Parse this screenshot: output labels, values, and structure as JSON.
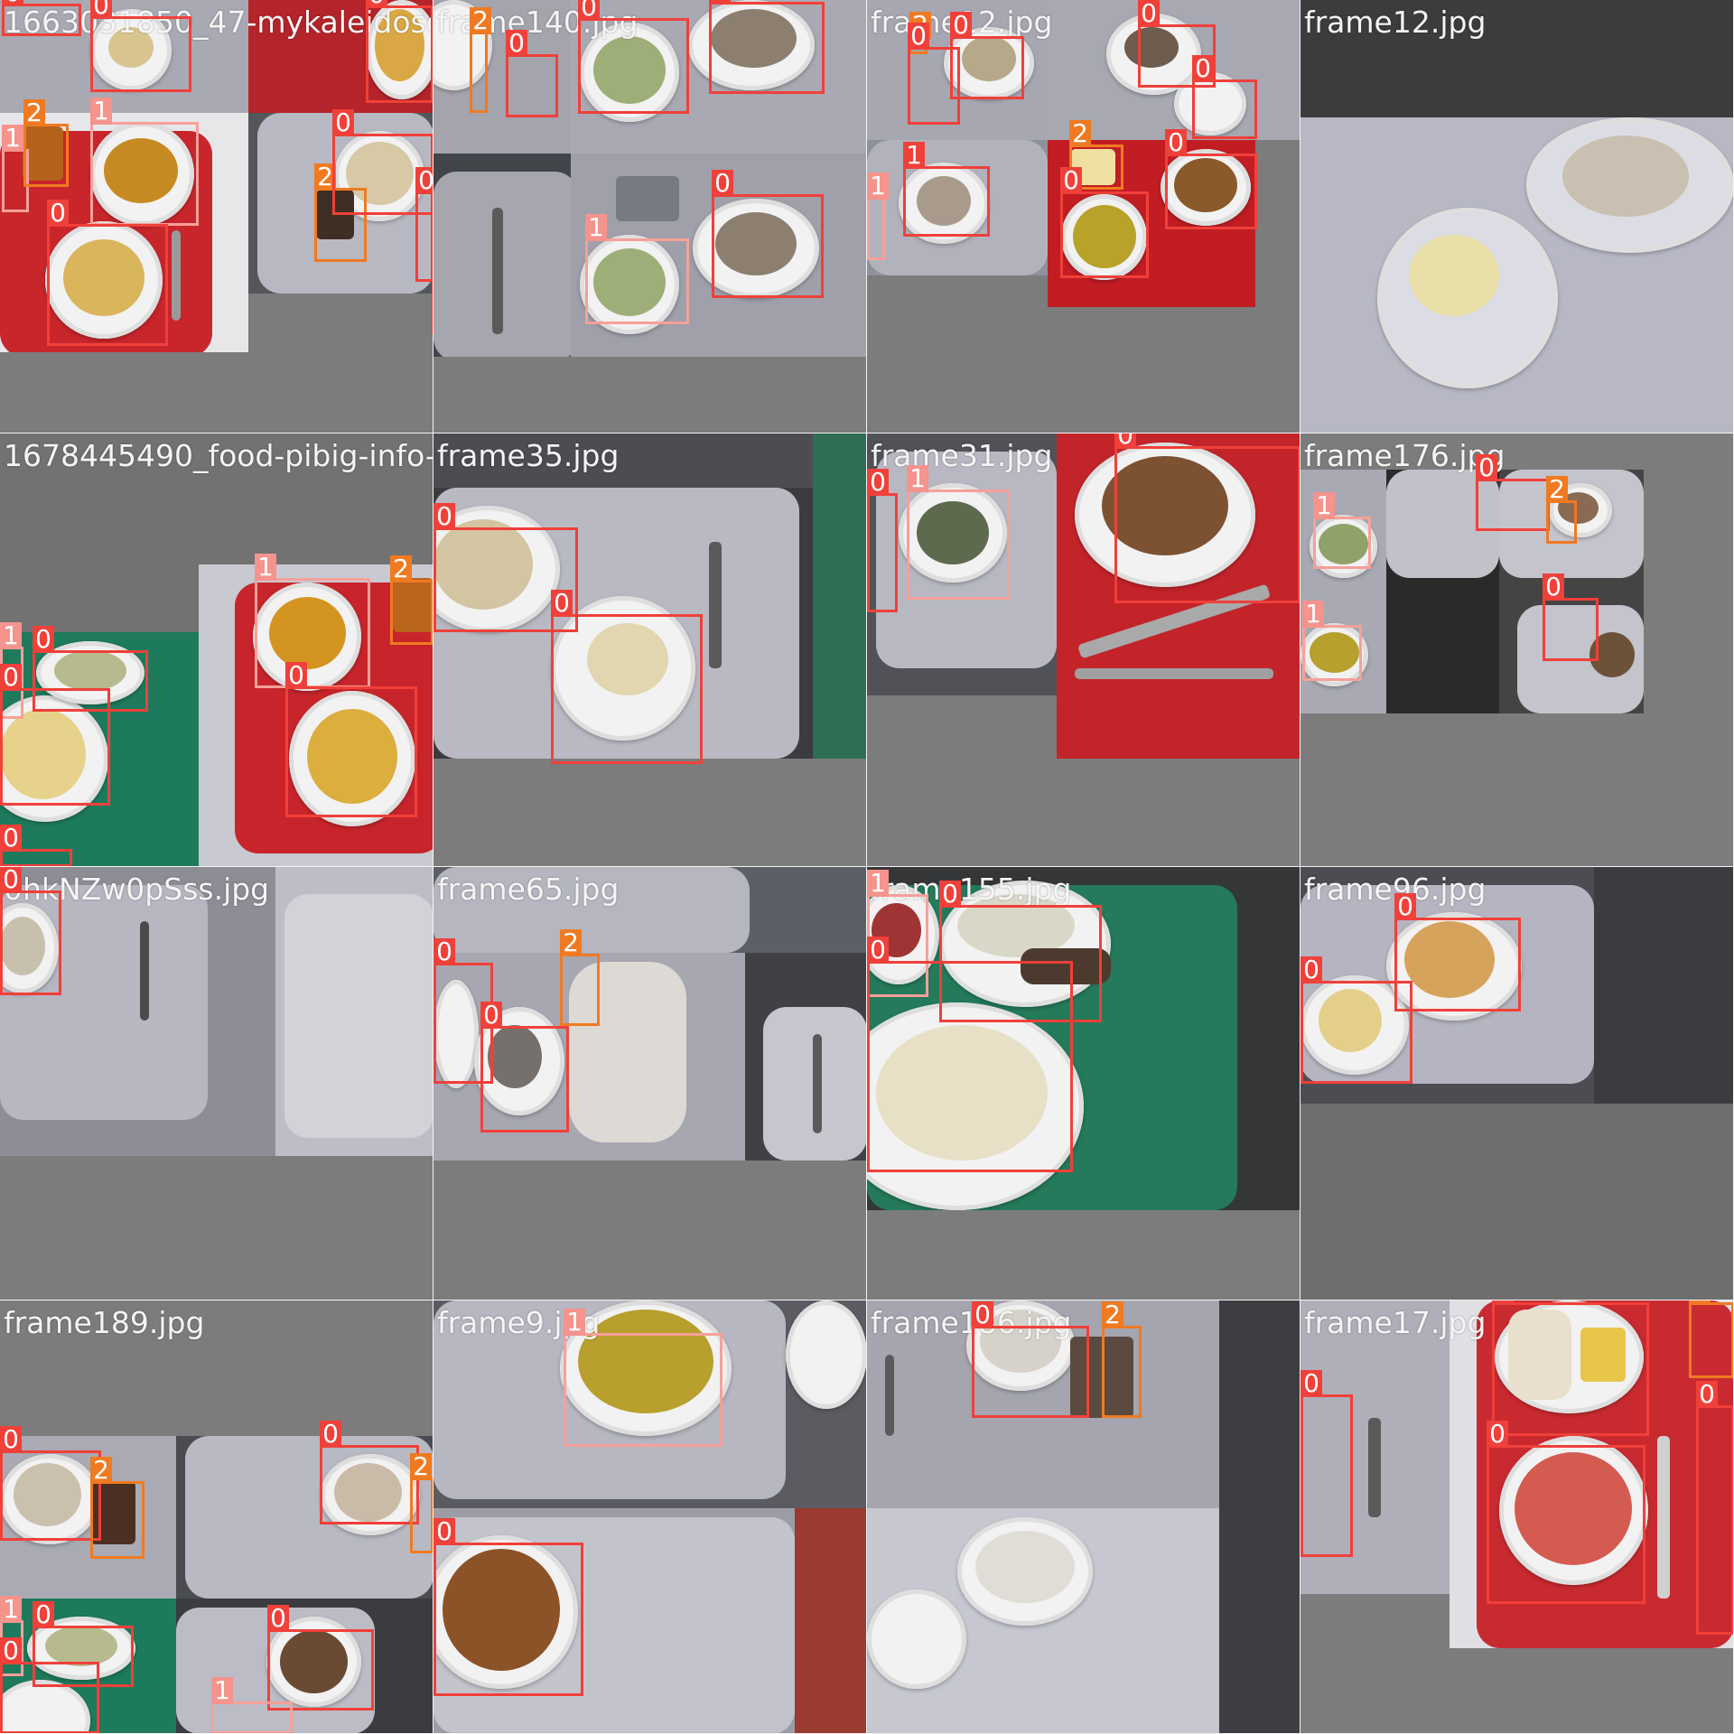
{
  "mosaic": {
    "tiles": [
      {
        "filename": "1663031850_47-mykaleidoscope-ru-p-komple",
        "boxes": [
          "0",
          "0",
          "1",
          "2",
          "1",
          "0",
          "0",
          "2",
          "0",
          "0",
          "0",
          "0",
          "1",
          "0",
          "1"
        ]
      },
      {
        "filename": "frame140.jpg",
        "boxes": [
          "2",
          "0",
          "0",
          "0",
          "0",
          "1",
          "2",
          "0"
        ]
      },
      {
        "filename": "frame12.jpg",
        "boxes": []
      },
      {
        "filename": "1678445490_food-pibig-info-p-stolovaya",
        "boxes": [
          "1",
          "0",
          "0",
          "0",
          "1",
          "2",
          "0"
        ]
      },
      {
        "filename": "frame35.jpg",
        "boxes": [
          "0",
          "0"
        ]
      },
      {
        "filename": "frame31.jpg",
        "boxes": [
          "0",
          "1",
          "0"
        ]
      },
      {
        "filename": "frame176.jpg",
        "boxes": [
          "0",
          "2",
          "1",
          "1",
          "0"
        ]
      },
      {
        "filename": "0hkNZw0pSss.jpg",
        "boxes": [
          "0"
        ]
      },
      {
        "filename": "frame65.jpg",
        "boxes": [
          "2",
          "0",
          "0"
        ]
      },
      {
        "filename": "frame155.jpg",
        "boxes": [
          "1",
          "0",
          "0"
        ]
      },
      {
        "filename": "frame96.jpg",
        "boxes": [
          "0",
          "0"
        ]
      },
      {
        "filename": "frame189.jpg",
        "boxes": [
          "0",
          "2",
          "0",
          "2",
          "1",
          "0",
          "0",
          "0",
          "1"
        ]
      },
      {
        "filename": "frame9.jpg",
        "boxes": [
          "1",
          "0"
        ]
      },
      {
        "filename": "frame186.jpg",
        "boxes": [
          "0",
          "2"
        ]
      },
      {
        "filename": "frame17.jpg",
        "boxes": [
          "0",
          "2",
          "0",
          "0",
          "0"
        ]
      }
    ]
  },
  "colors": {
    "class_0": "#f0403a",
    "class_1": "#f5938d",
    "class_2": "#f07a22",
    "background": "#727272"
  }
}
